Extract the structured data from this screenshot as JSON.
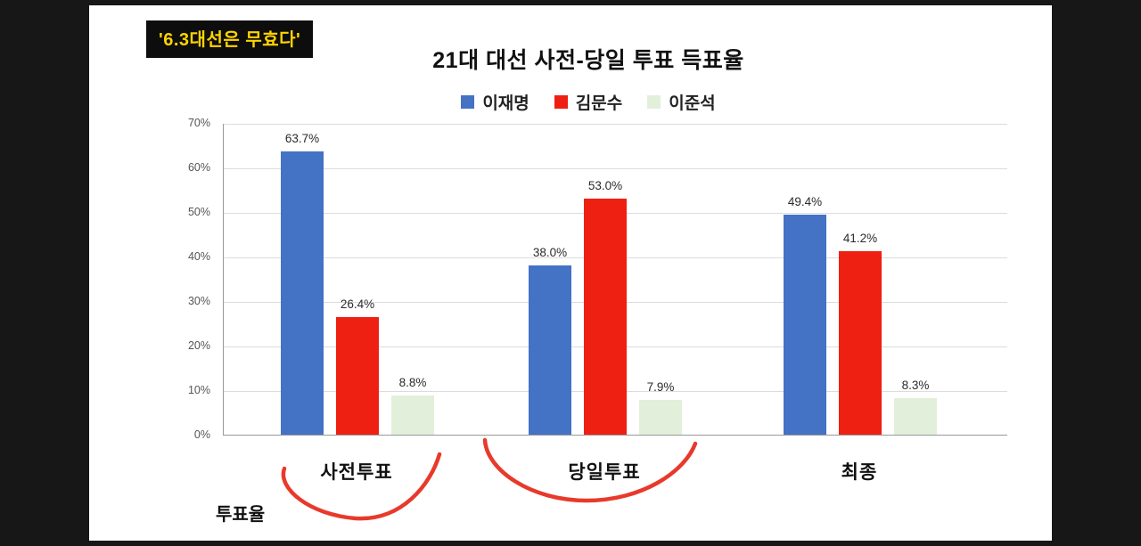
{
  "meta": {
    "badge": "'6.3대선은 무효다'",
    "footer_label": "투표율"
  },
  "colors": {
    "badge_bg": "#0d0d0d",
    "badge_text": "#ffd400",
    "annotation": "#e8392b",
    "background": "#ffffff",
    "frame": "#171717"
  },
  "chart_data": {
    "type": "bar",
    "title": "21대 대선 사전-당일 투표 득표율",
    "categories": [
      "사전투표",
      "당일투표",
      "최종"
    ],
    "series": [
      {
        "name": "이재명",
        "color": "#4472c4",
        "values": [
          63.7,
          38.0,
          49.4
        ]
      },
      {
        "name": "김문수",
        "color": "#ee2012",
        "values": [
          26.4,
          53.0,
          41.2
        ]
      },
      {
        "name": "이준석",
        "color": "#e2efda",
        "values": [
          8.8,
          7.9,
          8.3
        ]
      }
    ],
    "value_labels": [
      "63.7%",
      "26.4%",
      "8.8%",
      "38.0%",
      "53.0%",
      "7.9%",
      "49.4%",
      "41.2%",
      "8.3%"
    ],
    "xlabel": "",
    "ylabel": "",
    "ylim": [
      0,
      70
    ],
    "ytick_step": 10,
    "ytick_labels": [
      "0%",
      "10%",
      "20%",
      "30%",
      "40%",
      "50%",
      "60%",
      "70%"
    ],
    "grid": true,
    "legend_position": "top"
  }
}
